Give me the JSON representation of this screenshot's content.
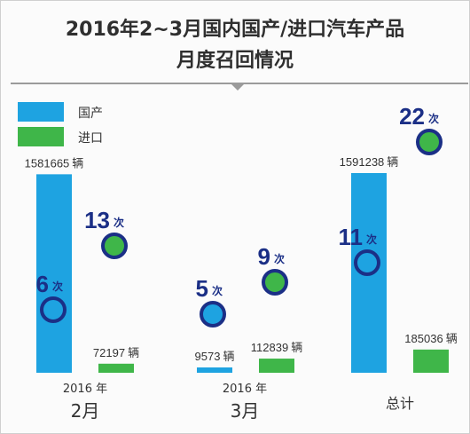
{
  "title_line1": "2016年2~3月国内国产/进口汽车产品",
  "title_line2": "月度召回情况",
  "colors": {
    "domestic": "#1ea3e1",
    "import": "#3fb649",
    "circle_ring": "#1b2f86",
    "count_text": "#1b2f86",
    "rule": "#9b9b9b"
  },
  "chart_data": {
    "type": "bar",
    "series": [
      {
        "name": "国产",
        "values": [
          1581665,
          9573,
          1591238
        ],
        "value_labels": [
          "1581665",
          "9573",
          "1591238"
        ],
        "counts": [
          6,
          5,
          11
        ]
      },
      {
        "name": "进口",
        "values": [
          72197,
          112839,
          185036
        ],
        "value_labels": [
          "72197",
          "112839",
          "185036"
        ],
        "counts": [
          13,
          9,
          22
        ]
      }
    ],
    "categories": [
      {
        "year": "2016 年",
        "label": "2月"
      },
      {
        "year": "2016 年",
        "label": "3月"
      },
      {
        "year": "",
        "label": "总计"
      }
    ],
    "value_unit": "辆",
    "count_unit": "次"
  }
}
